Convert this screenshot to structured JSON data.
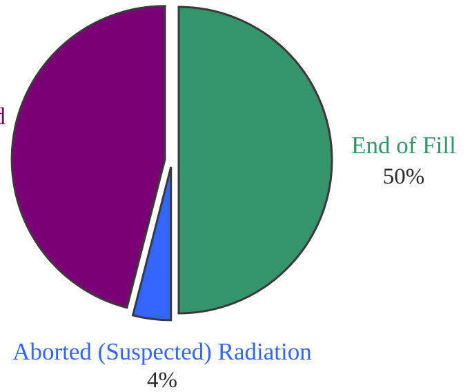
{
  "chart_data": {
    "type": "pie",
    "title": "",
    "slices": [
      {
        "label": "End of Fill",
        "value": 50,
        "value_label": "50%",
        "color": "#35956a"
      },
      {
        "label": "Aborted (Suspected) Radiation",
        "value": 4,
        "value_label": "4%",
        "color": "#3366ff"
      },
      {
        "label": "",
        "value": 46,
        "value_label": "",
        "color": "#7b0076",
        "visible_label_fragment": "d"
      }
    ],
    "legend": "none",
    "start_angle": "12 o'clock",
    "direction": "clockwise",
    "exploded": true
  }
}
